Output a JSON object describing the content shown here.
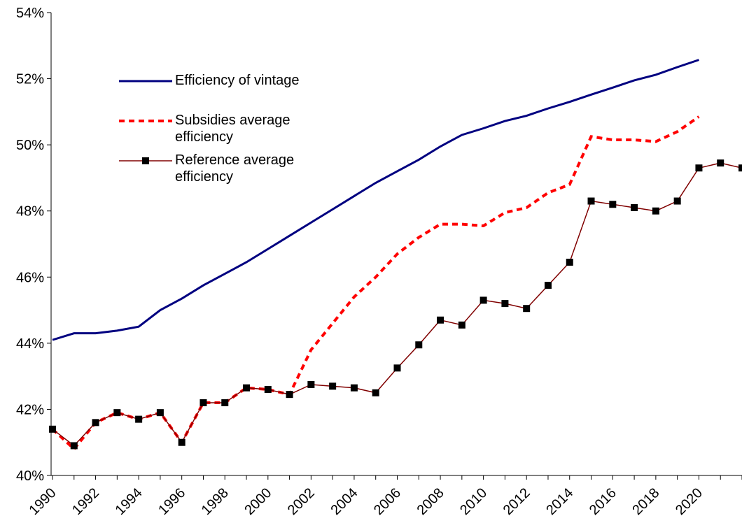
{
  "chart_data": {
    "type": "line",
    "categories": [
      "1990",
      null,
      "1992",
      null,
      "1994",
      null,
      "1996",
      null,
      "1998",
      null,
      "2000",
      null,
      "2002",
      null,
      "2004",
      null,
      "2006",
      null,
      "2008",
      null,
      "2010",
      null,
      "2012",
      null,
      "2014",
      null,
      "2016",
      null,
      "2018",
      null,
      "2020",
      null,
      null
    ],
    "series": [
      {
        "name": "Efficiency of vintage",
        "color": "#000080",
        "style": "solid",
        "marker": false,
        "values": [
          44.1,
          44.3,
          44.3,
          44.38,
          44.5,
          45.0,
          45.35,
          45.75,
          46.1,
          46.45,
          46.85,
          47.25,
          47.65,
          48.05,
          48.45,
          48.85,
          49.2,
          49.55,
          49.95,
          50.3,
          50.5,
          50.72,
          50.88,
          51.1,
          51.3,
          51.52,
          51.73,
          51.95,
          52.12,
          52.35,
          52.57,
          null,
          null
        ]
      },
      {
        "name": "Subsidies average efficiency",
        "color": "#ff0000",
        "style": "dashed",
        "marker": false,
        "values": [
          41.4,
          40.8,
          41.6,
          41.9,
          41.7,
          41.9,
          41.0,
          42.2,
          42.2,
          42.65,
          42.6,
          42.45,
          43.8,
          44.6,
          45.4,
          46.0,
          46.7,
          47.2,
          47.6,
          47.6,
          47.55,
          47.95,
          48.1,
          48.55,
          48.8,
          50.25,
          50.15,
          50.15,
          50.1,
          50.4,
          50.85,
          null,
          null
        ]
      },
      {
        "name": "Reference average efficiency",
        "color": "#800000",
        "style": "solid",
        "marker": true,
        "values": [
          41.4,
          40.9,
          41.6,
          41.9,
          41.7,
          41.9,
          41.0,
          42.2,
          42.2,
          42.65,
          42.6,
          42.45,
          42.75,
          42.7,
          42.65,
          42.5,
          43.25,
          43.95,
          44.7,
          44.55,
          45.3,
          45.2,
          45.05,
          45.75,
          46.45,
          48.3,
          48.2,
          48.1,
          48.0,
          48.3,
          49.3,
          49.45,
          49.3
        ]
      }
    ],
    "ylim": [
      40,
      54
    ],
    "yticks": [
      {
        "value": 40,
        "label": "40%"
      },
      {
        "value": 42,
        "label": "42%"
      },
      {
        "value": 44,
        "label": "44%"
      },
      {
        "value": 46,
        "label": "46%"
      },
      {
        "value": 48,
        "label": "48%"
      },
      {
        "value": 50,
        "label": "50%"
      },
      {
        "value": 52,
        "label": "52%"
      },
      {
        "value": 54,
        "label": "54%"
      }
    ],
    "grid": false
  }
}
